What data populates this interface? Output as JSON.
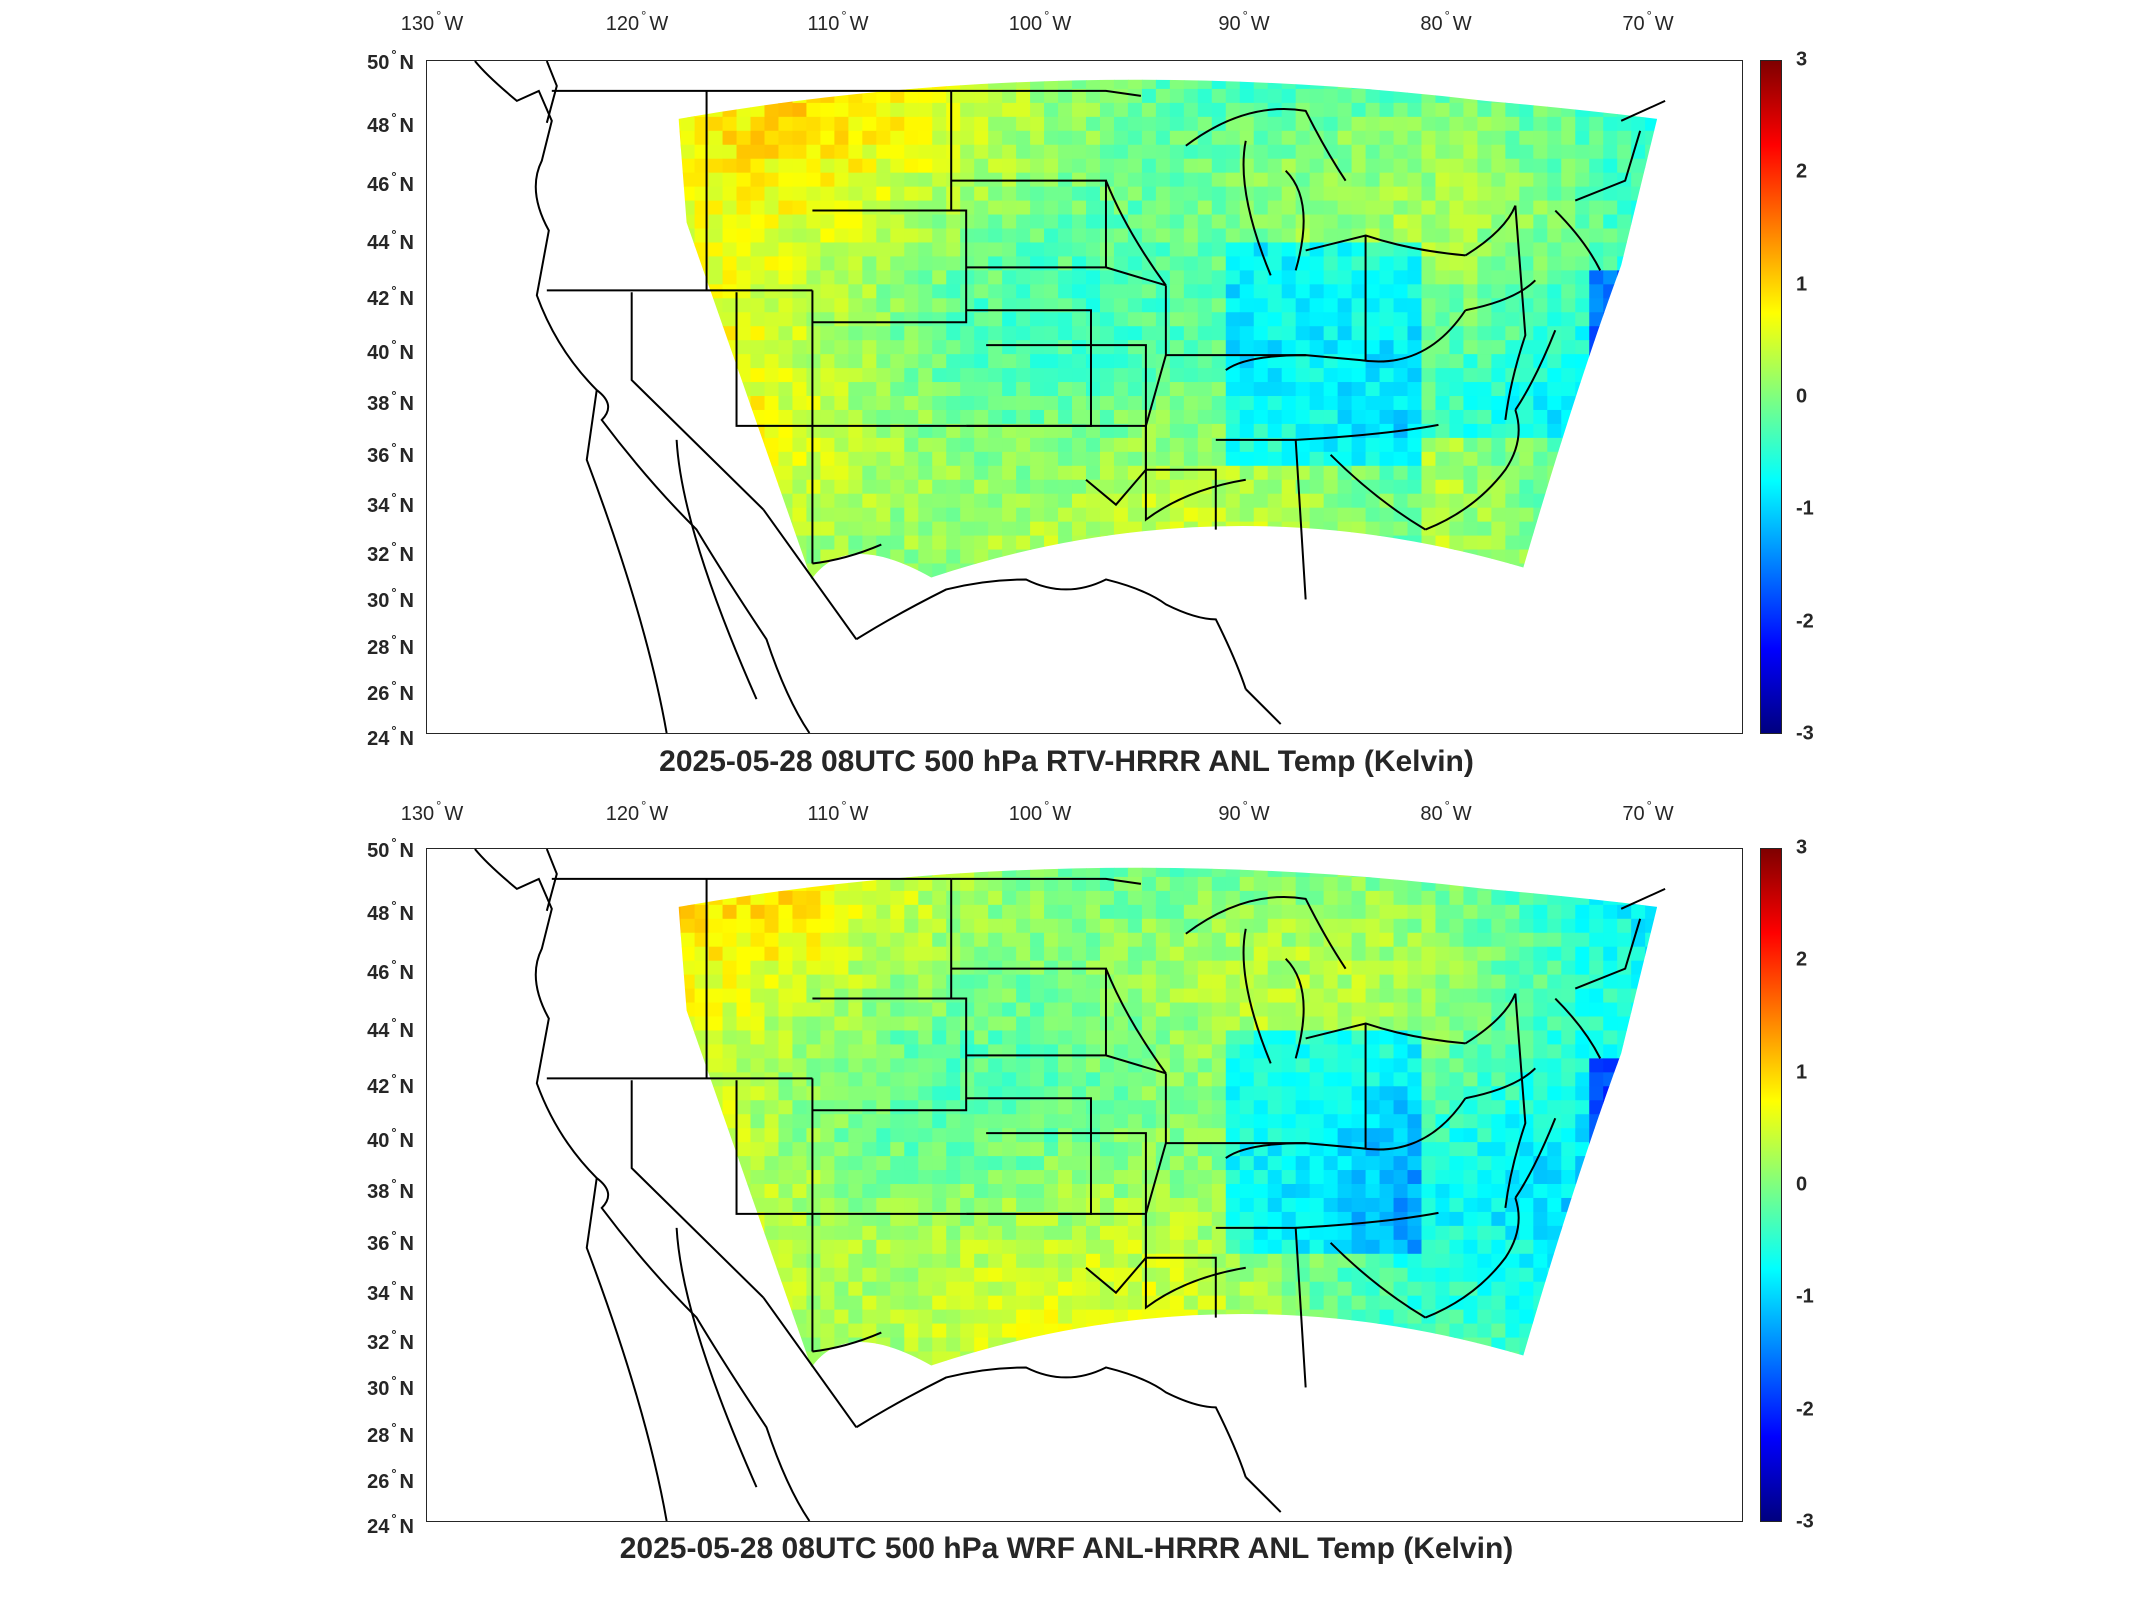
{
  "colormap": {
    "name": "jet",
    "stops": [
      "#00007f",
      "#0000ff",
      "#007fff",
      "#00ffff",
      "#7fff7f",
      "#ffff00",
      "#ff7f00",
      "#ff0000",
      "#7f0000"
    ]
  },
  "axes": {
    "lon_labels": [
      {
        "deg": "130",
        "hemi": "W"
      },
      {
        "deg": "120",
        "hemi": "W"
      },
      {
        "deg": "110",
        "hemi": "W"
      },
      {
        "deg": "100",
        "hemi": "W"
      },
      {
        "deg": "90",
        "hemi": "W"
      },
      {
        "deg": "80",
        "hemi": "W"
      },
      {
        "deg": "70",
        "hemi": "W"
      }
    ],
    "lat_labels": [
      {
        "deg": "50",
        "hemi": "N"
      },
      {
        "deg": "48",
        "hemi": "N"
      },
      {
        "deg": "46",
        "hemi": "N"
      },
      {
        "deg": "44",
        "hemi": "N"
      },
      {
        "deg": "42",
        "hemi": "N"
      },
      {
        "deg": "40",
        "hemi": "N"
      },
      {
        "deg": "38",
        "hemi": "N"
      },
      {
        "deg": "36",
        "hemi": "N"
      },
      {
        "deg": "34",
        "hemi": "N"
      },
      {
        "deg": "32",
        "hemi": "N"
      },
      {
        "deg": "30",
        "hemi": "N"
      },
      {
        "deg": "28",
        "hemi": "N"
      },
      {
        "deg": "26",
        "hemi": "N"
      },
      {
        "deg": "24",
        "hemi": "N"
      }
    ]
  },
  "panels": [
    {
      "title": "2025-05-28 08UTC 500 hPa RTV-HRRR ANL Temp (Kelvin)",
      "colorbar": {
        "min": -3,
        "max": 3,
        "ticks": [
          "3",
          "2",
          "1",
          "0",
          "-1",
          "-2",
          "-3"
        ]
      },
      "field": "rtv"
    },
    {
      "title": "2025-05-28 08UTC 500 hPa WRF ANL-HRRR ANL Temp (Kelvin)",
      "colorbar": {
        "min": -3,
        "max": 3,
        "ticks": [
          "3",
          "2",
          "1",
          "0",
          "-1",
          "-2",
          "-3"
        ]
      },
      "field": "wrf"
    }
  ]
}
